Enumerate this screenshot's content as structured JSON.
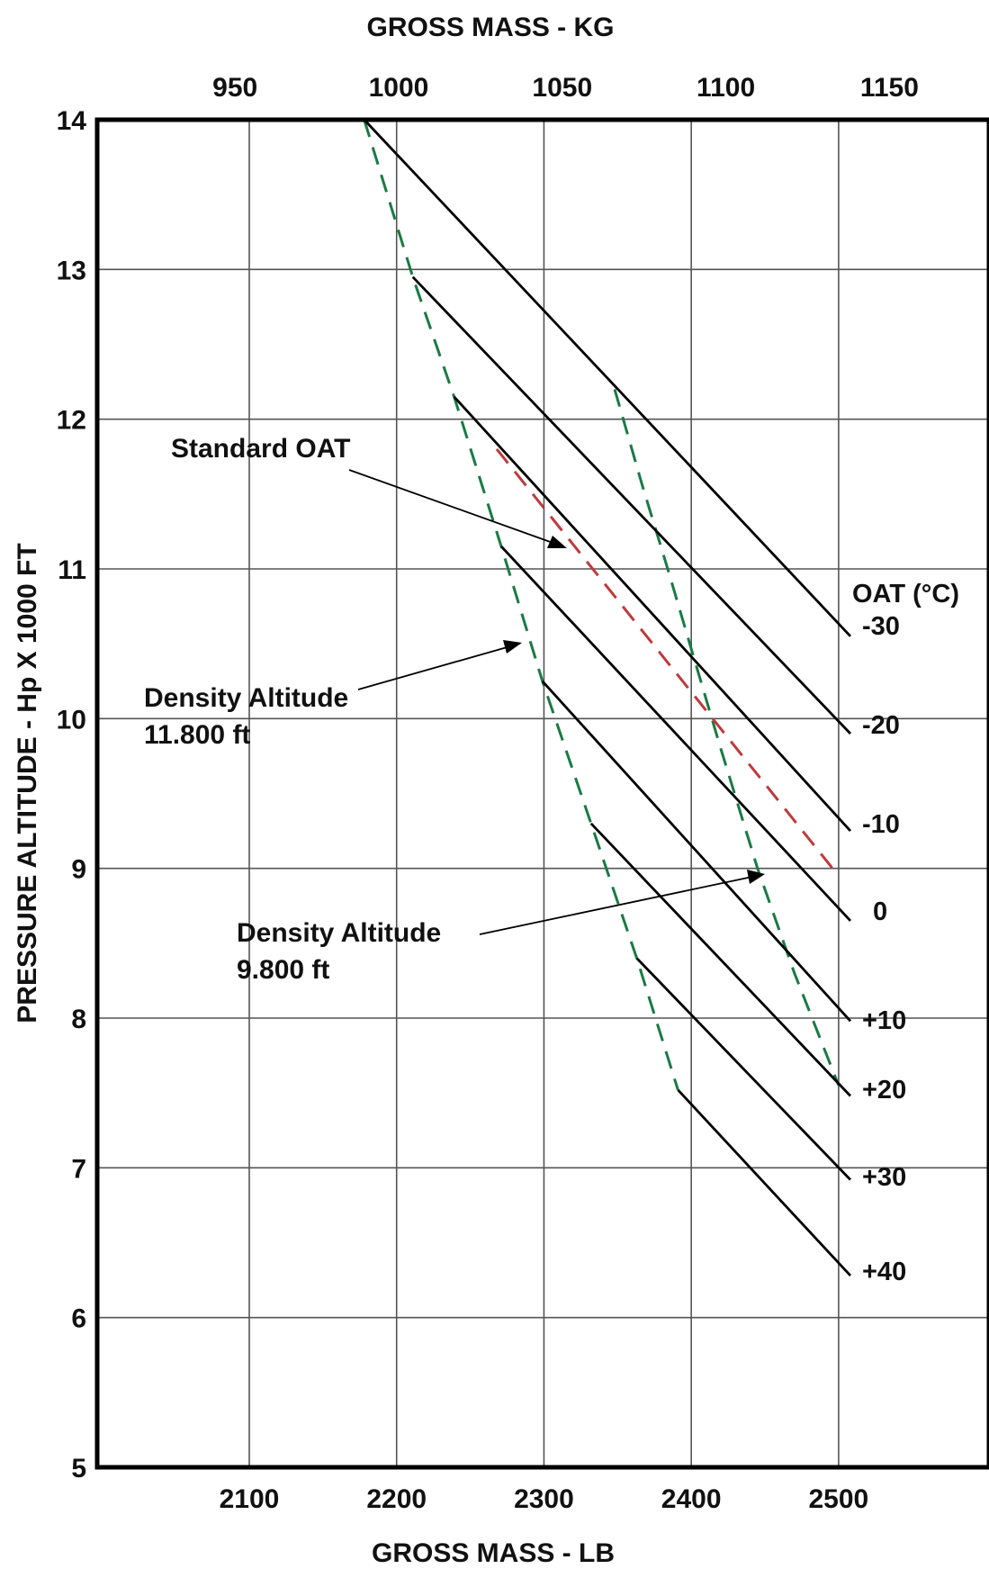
{
  "chart_data": {
    "type": "line",
    "title_top": "GROSS MASS - KG",
    "xlabel": "GROSS MASS - LB",
    "ylabel": "PRESSURE ALTITUDE - Hp X 1000 FT",
    "xlim": [
      2000,
      2600
    ],
    "ylim": [
      5,
      14
    ],
    "x_ticks": [
      2100,
      2200,
      2300,
      2400,
      2500
    ],
    "y_ticks": [
      5,
      6,
      7,
      8,
      9,
      10,
      11,
      12,
      13,
      14
    ],
    "kg_ticks": [
      950,
      1000,
      1050,
      1100,
      1150
    ],
    "grid": true,
    "legend_title": "OAT (°C)",
    "series": [
      {
        "name": "-30",
        "points": [
          [
            2178,
            14.0
          ],
          [
            2508,
            10.55
          ]
        ]
      },
      {
        "name": "-20",
        "points": [
          [
            2211,
            12.95
          ],
          [
            2508,
            9.9
          ]
        ]
      },
      {
        "name": "-10",
        "points": [
          [
            2239,
            12.15
          ],
          [
            2508,
            9.25
          ]
        ]
      },
      {
        "name": "0",
        "points": [
          [
            2271,
            11.15
          ],
          [
            2508,
            8.65
          ]
        ]
      },
      {
        "name": "+10",
        "points": [
          [
            2299,
            10.25
          ],
          [
            2508,
            7.98
          ]
        ]
      },
      {
        "name": "+20",
        "points": [
          [
            2332,
            9.3
          ],
          [
            2508,
            7.48
          ]
        ]
      },
      {
        "name": "+30",
        "points": [
          [
            2363,
            8.4
          ],
          [
            2508,
            6.92
          ]
        ]
      },
      {
        "name": "+40",
        "points": [
          [
            2391,
            7.52
          ],
          [
            2508,
            6.28
          ]
        ]
      }
    ],
    "density_altitude_lines": [
      {
        "label": "Density Altitude\n11.800 ft",
        "points": [
          [
            2178,
            14.0
          ],
          [
            2211,
            12.95
          ],
          [
            2239,
            12.15
          ],
          [
            2271,
            11.15
          ],
          [
            2299,
            10.25
          ],
          [
            2332,
            9.3
          ],
          [
            2363,
            8.4
          ],
          [
            2391,
            7.52
          ]
        ]
      },
      {
        "label": "Density Altitude\n9.800 ft",
        "points": [
          [
            2348,
            12.2
          ],
          [
            2367,
            11.55
          ],
          [
            2384,
            11.0
          ],
          [
            2402,
            10.4
          ],
          [
            2420,
            9.8
          ],
          [
            2445,
            9.0
          ],
          [
            2470,
            8.3
          ],
          [
            2500,
            7.55
          ]
        ]
      }
    ],
    "standard_oat": {
      "label": "Standard OAT",
      "points": [
        [
          2268,
          11.8
        ],
        [
          2500,
          8.95
        ]
      ]
    },
    "annotations": {
      "standard_oat": "Standard OAT",
      "da_upper_line1": "Density Altitude",
      "da_upper_line2": "11.800 ft",
      "da_lower_line1": "Density Altitude",
      "da_lower_line2": "9.800 ft"
    },
    "oat_labels": [
      "-30",
      "-20",
      "-10",
      "0",
      "+10",
      "+20",
      "+30",
      "+40"
    ]
  }
}
